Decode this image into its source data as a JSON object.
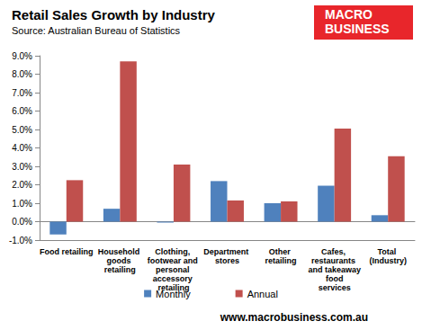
{
  "chart_data": {
    "type": "bar",
    "title": "Retail Sales Growth by Industry",
    "subtitle": "Source: Australian Bureau of Statistics",
    "logo_text": "MACRO BUSINESS",
    "footer": "www.macrobusiness.com.au",
    "categories": [
      "Food retailing",
      "Household goods retailing",
      "Clothing, footwear and personal accessory retailing",
      "Department stores",
      "Other retailing",
      "Cafes, restaurants and takeaway food services",
      "Total (Industry)"
    ],
    "series": [
      {
        "name": "Monthly",
        "color": "#4f81bd",
        "values": [
          -0.7,
          0.7,
          -0.05,
          2.2,
          1.0,
          1.95,
          0.35
        ]
      },
      {
        "name": "Annual",
        "color": "#c0504d",
        "values": [
          2.25,
          8.7,
          3.1,
          1.15,
          1.1,
          5.05,
          3.55
        ]
      }
    ],
    "ylim": [
      -1,
      9
    ],
    "yticks": [
      {
        "value": -1,
        "label": "-1.0%"
      },
      {
        "value": 0,
        "label": "0.0%"
      },
      {
        "value": 1,
        "label": "1.0%"
      },
      {
        "value": 2,
        "label": "2.0%"
      },
      {
        "value": 3,
        "label": "3.0%"
      },
      {
        "value": 4,
        "label": "4.0%"
      },
      {
        "value": 5,
        "label": "5.0%"
      },
      {
        "value": 6,
        "label": "6.0%"
      },
      {
        "value": 7,
        "label": "7.0%"
      },
      {
        "value": 8,
        "label": "8.0%"
      },
      {
        "value": 9,
        "label": "9.0%"
      }
    ],
    "grid": false,
    "legend": "bottom"
  }
}
